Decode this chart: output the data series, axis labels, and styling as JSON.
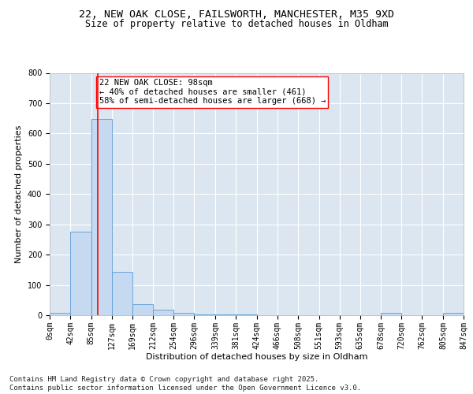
{
  "title_line1": "22, NEW OAK CLOSE, FAILSWORTH, MANCHESTER, M35 9XD",
  "title_line2": "Size of property relative to detached houses in Oldham",
  "xlabel": "Distribution of detached houses by size in Oldham",
  "ylabel": "Number of detached properties",
  "bar_color": "#c5d9f0",
  "bar_edge_color": "#5b9bd5",
  "background_color": "#dce6f1",
  "grid_color": "#ffffff",
  "red_line_x": 98,
  "annotation_text": "22 NEW OAK CLOSE: 98sqm\n← 40% of detached houses are smaller (461)\n58% of semi-detached houses are larger (668) →",
  "bin_edges": [
    0,
    42,
    85,
    127,
    169,
    212,
    254,
    296,
    339,
    381,
    424,
    466,
    508,
    551,
    593,
    635,
    678,
    720,
    762,
    805,
    847
  ],
  "bin_counts": [
    8,
    275,
    648,
    142,
    36,
    18,
    8,
    3,
    3,
    2,
    1,
    0,
    0,
    0,
    0,
    0,
    8,
    0,
    0,
    8
  ],
  "ylim": [
    0,
    800
  ],
  "yticks": [
    0,
    100,
    200,
    300,
    400,
    500,
    600,
    700,
    800
  ],
  "footer_text": "Contains HM Land Registry data © Crown copyright and database right 2025.\nContains public sector information licensed under the Open Government Licence v3.0.",
  "title_fontsize": 9.5,
  "subtitle_fontsize": 8.5,
  "axis_label_fontsize": 8,
  "tick_fontsize": 7,
  "annotation_fontsize": 7.5,
  "footer_fontsize": 6.5
}
